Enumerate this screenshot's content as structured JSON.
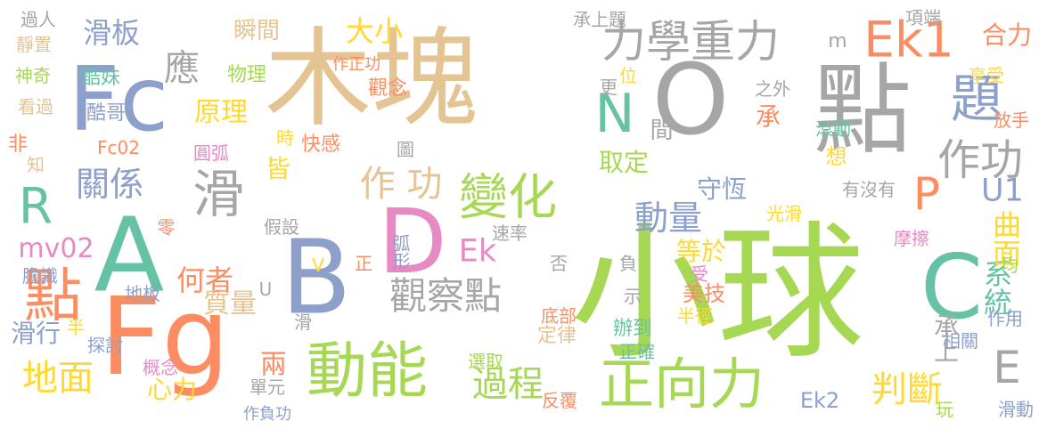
{
  "colors": {
    "gray": "#a6a6a6",
    "tan": "#e5c494",
    "green": "#a6d854",
    "teal": "#66c2a5",
    "orange": "#fc8d62",
    "blue": "#8da0cb",
    "pink": "#e78ac3",
    "yellow": "#ffd92f"
  },
  "words": [
    "小球",
    "木塊",
    "點",
    "O",
    "動能",
    "Fc",
    "A",
    "Fg",
    "C",
    "B",
    "D",
    "力學重力",
    "題",
    "作功",
    "正向力",
    "變化",
    "Ek1",
    "P",
    "觀察點",
    "N",
    "滑",
    "點",
    "過程",
    "關係",
    "判斷",
    "E",
    "R",
    "地面",
    "系統",
    "Ek",
    "何者",
    "曲面",
    "等於",
    "動量",
    "U1",
    "質量",
    "原理",
    "作 功",
    "應",
    "取定",
    "mv02",
    "守恆",
    "滑板",
    "大小",
    "Ek2",
    "兩",
    "瞬間",
    "心力",
    "合力",
    "定律",
    "美技",
    "滑行",
    "辦到",
    "承上",
    "皆",
    "酷妹",
    "酷哥",
    "觀念",
    "快感",
    "物理",
    "間",
    "圓弧",
    "探討",
    "承",
    "選取",
    "反覆",
    "項端",
    "弧形",
    "過人",
    "靜置",
    "神奇",
    "看過",
    "概念",
    "地板",
    "相關",
    "假設",
    "速率",
    "零",
    "底部",
    "享受",
    "Fc02",
    "承上題",
    "作正功",
    "作負功",
    "摩擦",
    "有沒有",
    "之外",
    "滾動",
    "放手",
    "想",
    "更",
    "光滑",
    "半徑",
    "正確",
    "作用",
    "膽識",
    "單元",
    "玩",
    "滑動",
    "非",
    "知",
    "m",
    "U",
    "V",
    "時",
    "圖",
    "位",
    "均",
    "半",
    "示",
    "否",
    "負",
    "正",
    "受",
    "滑"
  ]
}
